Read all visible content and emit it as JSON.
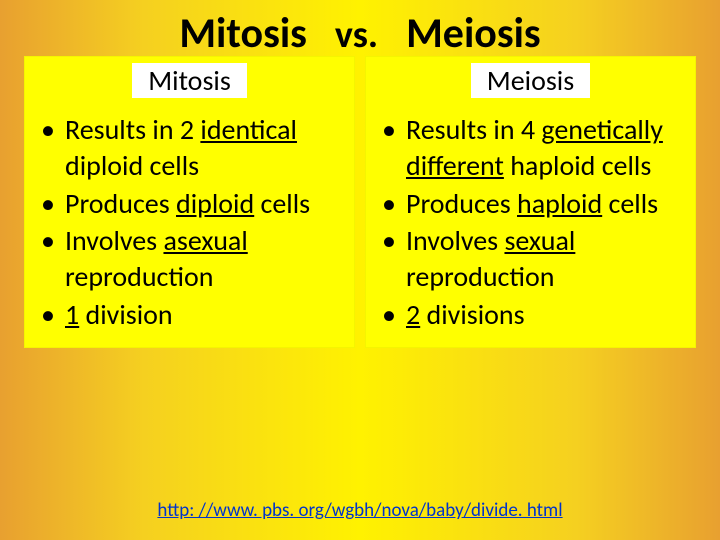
{
  "background": {
    "gradient_stops": [
      "#e8a030",
      "#f5d020",
      "#fff200",
      "#f5d020",
      "#e8a030"
    ]
  },
  "title": {
    "left": "Mitosis",
    "vs": "vs.",
    "right": "Meiosis",
    "fontsize": 42,
    "fontweight": 700,
    "color": "#000000"
  },
  "columns": {
    "background_color": "#ffff00",
    "heading_bg": "#ffffff",
    "heading_fontsize": 28,
    "bullet_fontsize": 28,
    "text_color": "#000000",
    "left": {
      "heading": "Mitosis",
      "items": [
        {
          "pre": "Results in 2 ",
          "u": "identical",
          "post": " diploid cells"
        },
        {
          "pre": "Produces ",
          "u": "diploid",
          "post": " cells"
        },
        {
          "pre": "Involves ",
          "u": "asexual",
          "post": " reproduction"
        },
        {
          "pre": "",
          "u": "1",
          "post": " division"
        }
      ]
    },
    "right": {
      "heading": "Meiosis",
      "items": [
        {
          "pre": "Results in 4 ",
          "u": "genetically different",
          "post": " haploid cells"
        },
        {
          "pre": "Produces ",
          "u": "haploid",
          "post": " cells"
        },
        {
          "pre": "Involves ",
          "u": "sexual",
          "post": " reproduction"
        },
        {
          "pre": "",
          "u": "2",
          "post": " divisions"
        }
      ]
    }
  },
  "footer": {
    "link_text": "http: //www. pbs. org/wgbh/nova/baby/divide. html",
    "link_color": "#0033cc",
    "fontsize": 19
  }
}
